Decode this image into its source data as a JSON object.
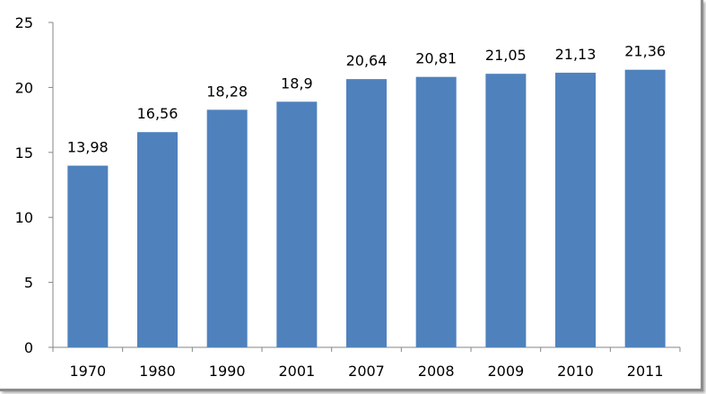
{
  "chart_data": {
    "type": "bar",
    "categories": [
      "1970",
      "1980",
      "1990",
      "2001",
      "2007",
      "2008",
      "2009",
      "2010",
      "2011"
    ],
    "values": [
      13.98,
      16.56,
      18.28,
      18.9,
      20.64,
      20.81,
      21.05,
      21.13,
      21.36
    ],
    "data_labels": [
      "13,98",
      "16,56",
      "18,28",
      "18,9",
      "20,64",
      "20,81",
      "21,05",
      "21,13",
      "21,36"
    ],
    "y_ticks": [
      "0",
      "5",
      "10",
      "15",
      "20",
      "25"
    ],
    "ylim": [
      0,
      25
    ],
    "title": "",
    "xlabel": "",
    "ylabel": "",
    "grid": false,
    "legend": "none",
    "bar_color": "#4f81bd"
  }
}
